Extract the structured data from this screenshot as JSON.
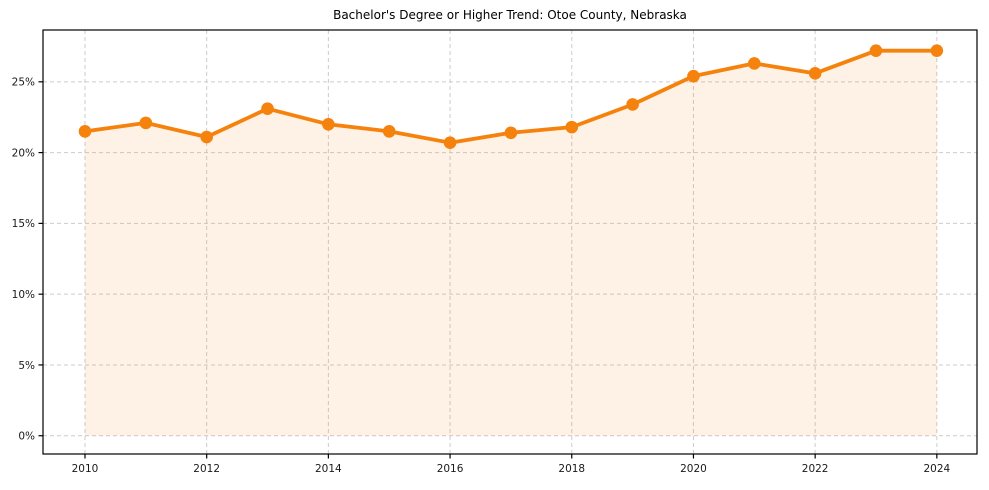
{
  "chart_data": {
    "type": "line",
    "title": "Bachelor's Degree or Higher Trend: Otoe County, Nebraska",
    "x": [
      2010,
      2011,
      2012,
      2013,
      2014,
      2015,
      2016,
      2017,
      2018,
      2019,
      2020,
      2021,
      2022,
      2023,
      2024
    ],
    "values": [
      21.5,
      22.1,
      21.1,
      23.1,
      22.0,
      21.5,
      20.7,
      21.4,
      21.8,
      23.4,
      25.4,
      26.3,
      25.6,
      27.2,
      27.2
    ],
    "xlabel": "",
    "ylabel": "",
    "x_tick_values": [
      2010,
      2012,
      2014,
      2016,
      2018,
      2020,
      2022,
      2024
    ],
    "x_tick_labels": [
      "2010",
      "2012",
      "2014",
      "2016",
      "2018",
      "2020",
      "2022",
      "2024"
    ],
    "y_tick_values": [
      0,
      5,
      10,
      15,
      20,
      25
    ],
    "y_tick_labels": [
      "0%",
      "5%",
      "10%",
      "15%",
      "20%",
      "25%"
    ],
    "xlim": [
      2009.31,
      2024.66
    ],
    "ylim": [
      -1.29,
      28.66
    ],
    "grid": true,
    "grid_style": "dashed",
    "legend_position": "none",
    "fill_to_zero": true,
    "colors": {
      "line": "#f5820d",
      "marker": "#f5820d",
      "fill": "#f5820d",
      "fill_opacity": 0.1,
      "grid": "#cccccc",
      "axis": "#000000",
      "tick_text": "#1a1a1a",
      "title_text": "#000000",
      "background": "#ffffff"
    }
  }
}
